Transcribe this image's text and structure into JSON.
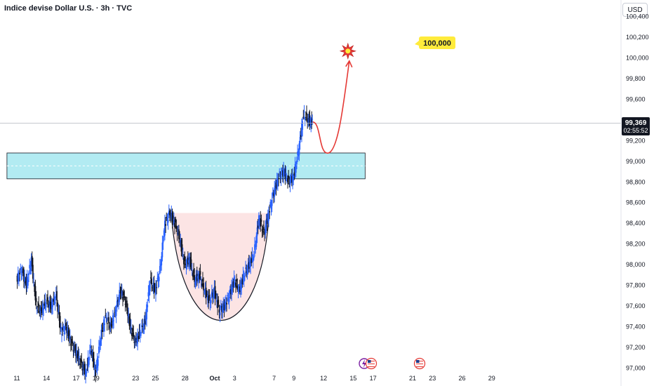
{
  "header": {
    "title": "Indice devise Dollar U.S. · 3h · TVC",
    "currency": "USD"
  },
  "price_badge": {
    "price": "99,369",
    "countdown": "02:55:52"
  },
  "colors": {
    "up": "#2962ff",
    "down": "#131722",
    "zone": "#b2ebf2",
    "cup_fill": "#fce4e4",
    "projection": "#e53935",
    "target_label_bg": "#ffeb3b"
  },
  "icons": [
    "flash-icon",
    "us-flag-icon",
    "us-flag-icon"
  ],
  "chart_data": {
    "type": "candlestick",
    "title": "Indice devise Dollar U.S. · 3h · TVC",
    "y_axis": {
      "ylim": [
        96.95,
        100.45
      ],
      "ticks": [
        {
          "value": 97.0,
          "label": "97,000"
        },
        {
          "value": 97.2,
          "label": "97,200"
        },
        {
          "value": 97.4,
          "label": "97,400"
        },
        {
          "value": 97.6,
          "label": "97,600"
        },
        {
          "value": 97.8,
          "label": "97,800"
        },
        {
          "value": 98.0,
          "label": "98,000"
        },
        {
          "value": 98.2,
          "label": "98,200"
        },
        {
          "value": 98.4,
          "label": "98,400"
        },
        {
          "value": 98.6,
          "label": "98,600"
        },
        {
          "value": 98.8,
          "label": "98,800"
        },
        {
          "value": 99.0,
          "label": "99,000"
        },
        {
          "value": 99.2,
          "label": "99,200"
        },
        {
          "value": 99.4,
          "label": "99,400"
        },
        {
          "value": 99.6,
          "label": "99,600"
        },
        {
          "value": 99.8,
          "label": "99,800"
        },
        {
          "value": 100.0,
          "label": "100,000"
        },
        {
          "value": 100.2,
          "label": "100,200"
        },
        {
          "value": 100.4,
          "label": "100,400"
        }
      ]
    },
    "x_axis": {
      "ticks": [
        {
          "day": 0,
          "label": "11"
        },
        {
          "day": 3,
          "label": "14"
        },
        {
          "day": 6,
          "label": "17"
        },
        {
          "day": 8,
          "label": "19"
        },
        {
          "day": 12,
          "label": "23"
        },
        {
          "day": 14,
          "label": "25"
        },
        {
          "day": 17,
          "label": "28"
        },
        {
          "day": 20,
          "label": "Oct"
        },
        {
          "day": 22,
          "label": "3"
        },
        {
          "day": 26,
          "label": "7"
        },
        {
          "day": 28,
          "label": "9"
        },
        {
          "day": 31,
          "label": "12"
        },
        {
          "day": 34,
          "label": "15"
        },
        {
          "day": 36,
          "label": "17"
        },
        {
          "day": 40,
          "label": "21"
        },
        {
          "day": 42,
          "label": "23"
        },
        {
          "day": 45,
          "label": "26"
        },
        {
          "day": 48,
          "label": "29"
        }
      ]
    },
    "last_price": 99.369,
    "resistance_zone": {
      "from_day": -1,
      "to_day": 35.2,
      "low": 98.83,
      "high": 99.08
    },
    "cup": {
      "start": {
        "day": 15.6,
        "price": 98.5
      },
      "bottom": {
        "day": 21.0,
        "price": 97.46
      },
      "end": {
        "day": 25.5,
        "price": 98.5
      }
    },
    "projection": {
      "start": {
        "day": 29.9,
        "price": 99.38
      },
      "dip": {
        "day": 31.5,
        "price": 99.08
      },
      "target": {
        "day": 33.6,
        "price": 99.97
      }
    },
    "target_label": "100,000",
    "closes": [
      {
        "day": 0.0,
        "close": 97.85
      },
      {
        "day": 0.5,
        "close": 97.95
      },
      {
        "day": 1.0,
        "close": 97.8
      },
      {
        "day": 1.5,
        "close": 98.05
      },
      {
        "day": 2.0,
        "close": 97.6
      },
      {
        "day": 2.5,
        "close": 97.55
      },
      {
        "day": 3.0,
        "close": 97.65
      },
      {
        "day": 3.5,
        "close": 97.6
      },
      {
        "day": 4.0,
        "close": 97.7
      },
      {
        "day": 4.5,
        "close": 97.35
      },
      {
        "day": 5.0,
        "close": 97.4
      },
      {
        "day": 5.5,
        "close": 97.25
      },
      {
        "day": 6.0,
        "close": 97.15
      },
      {
        "day": 6.5,
        "close": 97.05
      },
      {
        "day": 7.0,
        "close": 96.95
      },
      {
        "day": 7.5,
        "close": 97.2
      },
      {
        "day": 8.0,
        "close": 96.95
      },
      {
        "day": 8.5,
        "close": 97.3
      },
      {
        "day": 9.0,
        "close": 97.5
      },
      {
        "day": 9.5,
        "close": 97.4
      },
      {
        "day": 10.0,
        "close": 97.55
      },
      {
        "day": 10.5,
        "close": 97.75
      },
      {
        "day": 11.0,
        "close": 97.65
      },
      {
        "day": 11.5,
        "close": 97.4
      },
      {
        "day": 12.0,
        "close": 97.25
      },
      {
        "day": 12.5,
        "close": 97.35
      },
      {
        "day": 13.0,
        "close": 97.45
      },
      {
        "day": 13.5,
        "close": 97.85
      },
      {
        "day": 14.0,
        "close": 97.75
      },
      {
        "day": 14.5,
        "close": 97.95
      },
      {
        "day": 15.0,
        "close": 98.4
      },
      {
        "day": 15.5,
        "close": 98.5
      },
      {
        "day": 16.0,
        "close": 98.4
      },
      {
        "day": 16.5,
        "close": 98.25
      },
      {
        "day": 17.0,
        "close": 98.0
      },
      {
        "day": 17.5,
        "close": 98.05
      },
      {
        "day": 18.0,
        "close": 97.85
      },
      {
        "day": 18.5,
        "close": 97.9
      },
      {
        "day": 19.0,
        "close": 97.75
      },
      {
        "day": 19.5,
        "close": 97.65
      },
      {
        "day": 20.0,
        "close": 97.75
      },
      {
        "day": 20.5,
        "close": 97.55
      },
      {
        "day": 21.0,
        "close": 97.6
      },
      {
        "day": 21.5,
        "close": 97.7
      },
      {
        "day": 22.0,
        "close": 97.85
      },
      {
        "day": 22.5,
        "close": 97.75
      },
      {
        "day": 23.0,
        "close": 97.9
      },
      {
        "day": 23.5,
        "close": 98.0
      },
      {
        "day": 24.0,
        "close": 98.1
      },
      {
        "day": 24.5,
        "close": 98.45
      },
      {
        "day": 25.0,
        "close": 98.3
      },
      {
        "day": 25.5,
        "close": 98.5
      },
      {
        "day": 26.0,
        "close": 98.7
      },
      {
        "day": 26.5,
        "close": 98.85
      },
      {
        "day": 27.0,
        "close": 98.9
      },
      {
        "day": 27.5,
        "close": 98.8
      },
      {
        "day": 28.0,
        "close": 98.85
      },
      {
        "day": 28.5,
        "close": 99.1
      },
      {
        "day": 29.0,
        "close": 99.45
      },
      {
        "day": 29.5,
        "close": 99.4
      },
      {
        "day": 29.9,
        "close": 99.37
      }
    ]
  }
}
